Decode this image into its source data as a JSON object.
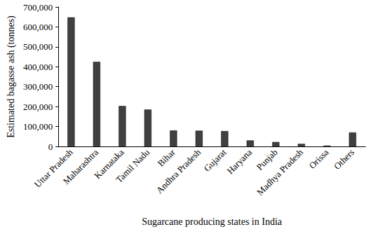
{
  "chart_data": {
    "type": "bar",
    "x_label": "Sugarcane producing states in India",
    "y_label": "Estimated bagasse ash (tonnes)",
    "categories": [
      "Uttar Pradesh",
      "Maharashtra",
      "Karnataka",
      "Tamil Nadu",
      "Bihar",
      "Andhra Pradesh",
      "Gujarat",
      "Haryana",
      "Punjab",
      "Madhya Pradesh",
      "Orissa",
      "Others"
    ],
    "values": [
      648000,
      425000,
      203000,
      185000,
      80000,
      79000,
      77000,
      30000,
      22000,
      13000,
      4000,
      70000
    ],
    "color": "#404040",
    "ylim": [
      0,
      700000
    ],
    "yticks": [
      0,
      {
        "value": 100000,
        "label": "100,000"
      },
      {
        "value": 200000,
        "label": "200,000"
      },
      {
        "value": 300000,
        "label": "300,000"
      },
      {
        "value": 400000,
        "label": "400,000"
      },
      {
        "value": 500000,
        "label": "500,000"
      },
      {
        "value": 600000,
        "label": "600,000"
      },
      {
        "value": 700000,
        "label": "700,000"
      }
    ],
    "grid": false
  }
}
